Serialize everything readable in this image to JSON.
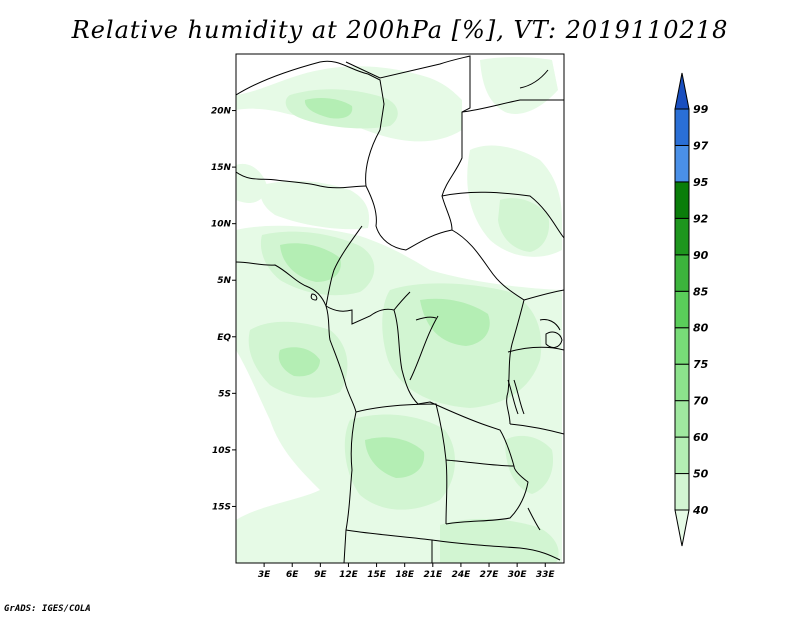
{
  "title": "Relative humidity at 200hPa [%], VT: 2019110218",
  "footer": "GrADS: IGES/COLA",
  "map": {
    "lat_ticks": [
      {
        "lat": 20,
        "label": "20N"
      },
      {
        "lat": 15,
        "label": "15N"
      },
      {
        "lat": 10,
        "label": "10N"
      },
      {
        "lat": 5,
        "label": "5N"
      },
      {
        "lat": 0,
        "label": "EQ"
      },
      {
        "lat": -5,
        "label": "5S"
      },
      {
        "lat": -10,
        "label": "10S"
      },
      {
        "lat": -15,
        "label": "15S"
      }
    ],
    "lon_ticks": [
      {
        "lon": 3,
        "label": "3E"
      },
      {
        "lon": 6,
        "label": "6E"
      },
      {
        "lon": 9,
        "label": "9E"
      },
      {
        "lon": 12,
        "label": "12E"
      },
      {
        "lon": 15,
        "label": "15E"
      },
      {
        "lon": 18,
        "label": "18E"
      },
      {
        "lon": 21,
        "label": "21E"
      },
      {
        "lon": 24,
        "label": "24E"
      },
      {
        "lon": 27,
        "label": "27E"
      },
      {
        "lon": 30,
        "label": "30E"
      },
      {
        "lon": 33,
        "label": "33E"
      }
    ],
    "extent": {
      "lon_min": 0,
      "lon_max": 35,
      "lat_min": -20,
      "lat_max": 25
    }
  },
  "colorbar": {
    "levels": [
      "40",
      "50",
      "60",
      "70",
      "75",
      "80",
      "85",
      "90",
      "92",
      "95",
      "97",
      "99"
    ],
    "colors": [
      "#e6fae6",
      "#d2f5d2",
      "#b4eeb4",
      "#a0e8a0",
      "#8ce28c",
      "#78dc78",
      "#5acd5a",
      "#3cb43c",
      "#1e961e",
      "#0a7d0a",
      "#4a90e8",
      "#2a6fd6",
      "#1a4fbf"
    ]
  }
}
